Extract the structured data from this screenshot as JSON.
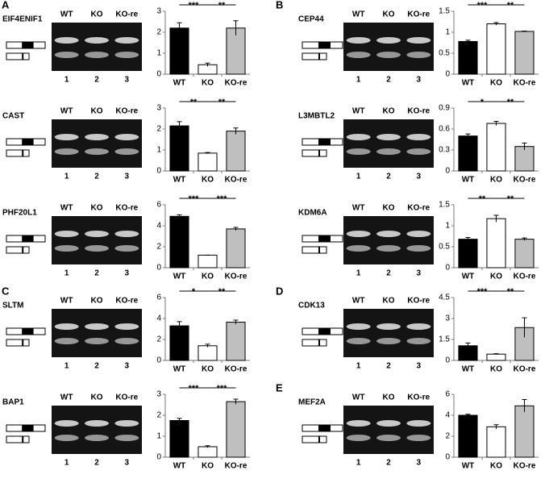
{
  "panels": [
    {
      "letter": "A",
      "gene": "EIF4ENIF1",
      "gel_lanes": [
        "WT",
        "KO",
        "KO-re"
      ],
      "lane_numbers": [
        1,
        2,
        3
      ]
    },
    {
      "gene": "CAST",
      "gel_lanes": [
        "WT",
        "KO",
        "KO-re"
      ],
      "lane_numbers": [
        1,
        2,
        3
      ]
    },
    {
      "gene": "PHF20L1",
      "gel_lanes": [
        "WT",
        "KO",
        "KO-re"
      ],
      "lane_numbers": [
        1,
        2,
        3
      ]
    },
    {
      "letter": "C",
      "gene": "SLTM",
      "gel_lanes": [
        "WT",
        "KO",
        "KO-re"
      ],
      "lane_numbers": [
        1,
        2,
        3
      ]
    },
    {
      "gene": "BAP1",
      "gel_lanes": [
        "WT",
        "KO",
        "KO-re"
      ],
      "lane_numbers": [
        1,
        2,
        3
      ]
    },
    {
      "letter": "B",
      "gene": "CEP44",
      "gel_lanes": [
        "WT",
        "KO",
        "KO-re"
      ],
      "lane_numbers": [
        1,
        2,
        3
      ]
    },
    {
      "gene": "L3MBTL2",
      "gel_lanes": [
        "WT",
        "KO",
        "KO-re"
      ],
      "lane_numbers": [
        1,
        2,
        3
      ]
    },
    {
      "gene": "KDM6A",
      "gel_lanes": [
        "WT",
        "KO",
        "KO-re"
      ],
      "lane_numbers": [
        1,
        2,
        3
      ]
    },
    {
      "letter": "D",
      "gene": "CDK13",
      "gel_lanes": [
        "WT",
        "KO",
        "KO-re"
      ],
      "lane_numbers": [
        1,
        2,
        3
      ]
    },
    {
      "letter": "E",
      "gene": "MEF2A",
      "gel_lanes": [
        "WT",
        "KO",
        "KO-re"
      ],
      "lane_numbers": [
        1,
        2,
        3
      ]
    }
  ],
  "chart_data": [
    {
      "type": "bar",
      "categories": [
        "WT",
        "KO",
        "KO-re"
      ],
      "values": [
        2.2,
        0.45,
        2.2
      ],
      "errors": [
        0.25,
        0.08,
        0.35
      ],
      "colors": [
        "#000000",
        "#ffffff",
        "#bfbfbf"
      ],
      "ylim": [
        0,
        3
      ],
      "yticks": [
        0,
        1,
        2,
        3
      ],
      "significance": [
        "***",
        "**"
      ]
    },
    {
      "type": "bar",
      "categories": [
        "WT",
        "KO",
        "KO-re"
      ],
      "values": [
        2.15,
        0.85,
        1.9
      ],
      "errors": [
        0.2,
        0.03,
        0.15
      ],
      "colors": [
        "#000000",
        "#ffffff",
        "#bfbfbf"
      ],
      "ylim": [
        0,
        3
      ],
      "yticks": [
        0,
        1,
        2,
        3
      ],
      "significance": [
        "**",
        "**"
      ]
    },
    {
      "type": "bar",
      "categories": [
        "WT",
        "KO",
        "KO-re"
      ],
      "values": [
        4.9,
        1.2,
        3.7
      ],
      "errors": [
        0.15,
        0,
        0.15
      ],
      "colors": [
        "#000000",
        "#ffffff",
        "#bfbfbf"
      ],
      "ylim": [
        0,
        6
      ],
      "yticks": [
        0,
        2,
        4,
        6
      ],
      "significance": [
        "***",
        "***"
      ]
    },
    {
      "type": "bar",
      "categories": [
        "WT",
        "KO",
        "KO-re"
      ],
      "values": [
        3.3,
        1.4,
        3.65
      ],
      "errors": [
        0.4,
        0.15,
        0.2
      ],
      "colors": [
        "#000000",
        "#ffffff",
        "#bfbfbf"
      ],
      "ylim": [
        0,
        6
      ],
      "yticks": [
        0,
        2,
        4,
        6
      ],
      "significance": [
        "*",
        "**"
      ]
    },
    {
      "type": "bar",
      "categories": [
        "WT",
        "KO",
        "KO-re"
      ],
      "values": [
        1.75,
        0.5,
        2.65
      ],
      "errors": [
        0.1,
        0.05,
        0.12
      ],
      "colors": [
        "#000000",
        "#ffffff",
        "#bfbfbf"
      ],
      "ylim": [
        0,
        3
      ],
      "yticks": [
        0,
        1,
        2,
        3
      ],
      "significance": [
        "***",
        "***"
      ]
    },
    {
      "type": "bar",
      "categories": [
        "WT",
        "KO",
        "KO-re"
      ],
      "values": [
        0.78,
        1.2,
        1.02
      ],
      "errors": [
        0.03,
        0.03,
        0.01
      ],
      "colors": [
        "#000000",
        "#ffffff",
        "#bfbfbf"
      ],
      "ylim": [
        0,
        1.5
      ],
      "yticks": [
        0,
        0.5,
        1,
        1.5
      ],
      "significance": [
        "***",
        "**"
      ]
    },
    {
      "type": "bar",
      "categories": [
        "WT",
        "KO",
        "KO-re"
      ],
      "values": [
        0.5,
        0.68,
        0.35
      ],
      "errors": [
        0.03,
        0.03,
        0.05
      ],
      "colors": [
        "#000000",
        "#ffffff",
        "#bfbfbf"
      ],
      "ylim": [
        0,
        0.9
      ],
      "yticks": [
        0,
        0.3,
        0.6,
        0.9
      ],
      "significance": [
        "*",
        "**"
      ]
    },
    {
      "type": "bar",
      "categories": [
        "WT",
        "KO",
        "KO-re"
      ],
      "values": [
        0.68,
        1.17,
        0.68
      ],
      "errors": [
        0.04,
        0.08,
        0.03
      ],
      "colors": [
        "#000000",
        "#ffffff",
        "#bfbfbf"
      ],
      "ylim": [
        0,
        1.5
      ],
      "yticks": [
        0,
        0.5,
        1,
        1.5
      ],
      "significance": [
        "**",
        "**"
      ]
    },
    {
      "type": "bar",
      "categories": [
        "WT",
        "KO",
        "KO-re"
      ],
      "values": [
        1.05,
        0.45,
        2.35
      ],
      "errors": [
        0.2,
        0.03,
        0.7
      ],
      "colors": [
        "#000000",
        "#ffffff",
        "#bfbfbf"
      ],
      "ylim": [
        0,
        4.5
      ],
      "yticks": [
        0,
        1.5,
        3,
        4.5
      ],
      "significance": [
        "***",
        "**"
      ]
    },
    {
      "type": "bar",
      "categories": [
        "WT",
        "KO",
        "KO-re"
      ],
      "values": [
        4.0,
        2.9,
        4.9
      ],
      "errors": [
        0.1,
        0.2,
        0.6
      ],
      "colors": [
        "#000000",
        "#ffffff",
        "#bfbfbf"
      ],
      "ylim": [
        0,
        6
      ],
      "yticks": [
        0,
        2,
        4,
        6
      ],
      "significance": []
    }
  ]
}
